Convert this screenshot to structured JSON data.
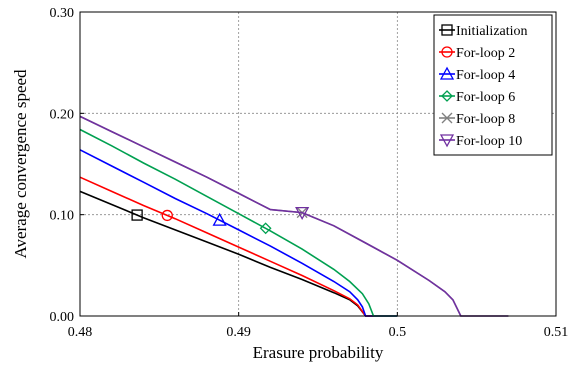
{
  "chart_data": {
    "type": "line",
    "xlabel": "Erasure probability",
    "ylabel": "Average convergence speed",
    "xlim": [
      0.48,
      0.51
    ],
    "ylim": [
      0.0,
      0.3
    ],
    "xticks": [
      0.48,
      0.49,
      0.5,
      0.51
    ],
    "yticks": [
      0.0,
      0.1,
      0.2,
      0.3
    ],
    "xtick_labels": [
      "0.48",
      "0.49",
      "0.5",
      "0.51"
    ],
    "ytick_labels": [
      "0.00",
      "0.10",
      "0.20",
      "0.30"
    ],
    "grid": true,
    "grid_style": "dotted",
    "legend_position": "top-right",
    "series": [
      {
        "name": "Initialization",
        "color": "#000000",
        "marker": "square",
        "marker_x": 0.4836,
        "x": [
          0.48,
          0.482,
          0.484,
          0.486,
          0.488,
          0.49,
          0.492,
          0.494,
          0.496,
          0.497,
          0.4975,
          0.498,
          0.5
        ],
        "y": [
          0.123,
          0.11,
          0.097,
          0.085,
          0.073,
          0.061,
          0.048,
          0.036,
          0.023,
          0.016,
          0.01,
          0.0,
          0.0
        ]
      },
      {
        "name": "For-loop 2",
        "color": "#ff0000",
        "marker": "circle",
        "marker_x": 0.4855,
        "x": [
          0.48,
          0.482,
          0.484,
          0.486,
          0.488,
          0.49,
          0.492,
          0.494,
          0.496,
          0.497,
          0.4975,
          0.498,
          0.5
        ],
        "y": [
          0.137,
          0.123,
          0.109,
          0.096,
          0.082,
          0.068,
          0.054,
          0.04,
          0.025,
          0.017,
          0.011,
          0.0,
          0.0
        ]
      },
      {
        "name": "For-loop 4",
        "color": "#0000ff",
        "marker": "triangle-up",
        "marker_x": 0.4888,
        "x": [
          0.48,
          0.482,
          0.484,
          0.486,
          0.488,
          0.49,
          0.492,
          0.494,
          0.496,
          0.497,
          0.4975,
          0.4978,
          0.498,
          0.5
        ],
        "y": [
          0.164,
          0.148,
          0.132,
          0.116,
          0.101,
          0.085,
          0.069,
          0.052,
          0.034,
          0.024,
          0.016,
          0.009,
          0.0,
          0.0
        ]
      },
      {
        "name": "For-loop 6",
        "color": "#00a050",
        "marker": "diamond",
        "marker_x": 0.4917,
        "x": [
          0.48,
          0.482,
          0.484,
          0.486,
          0.488,
          0.49,
          0.492,
          0.494,
          0.496,
          0.497,
          0.4978,
          0.4982,
          0.4985,
          0.5
        ],
        "y": [
          0.184,
          0.168,
          0.151,
          0.135,
          0.118,
          0.101,
          0.084,
          0.066,
          0.046,
          0.034,
          0.022,
          0.012,
          0.0,
          0.0
        ]
      },
      {
        "name": "For-loop 8",
        "color": "#808080",
        "marker": "x",
        "marker_x": 0.494,
        "x": [
          0.48,
          0.482,
          0.484,
          0.486,
          0.488,
          0.49,
          0.492,
          0.494,
          0.496,
          0.498,
          0.5,
          0.502,
          0.503,
          0.5035,
          0.504,
          0.507
        ],
        "y": [
          0.197,
          0.182,
          0.167,
          0.152,
          0.137,
          0.121,
          0.105,
          0.102,
          0.089,
          0.072,
          0.055,
          0.035,
          0.024,
          0.016,
          0.0,
          0.0
        ]
      },
      {
        "name": "For-loop 10",
        "color": "#7030a0",
        "marker": "triangle-down",
        "marker_x": 0.494,
        "x": [
          0.48,
          0.482,
          0.484,
          0.486,
          0.488,
          0.49,
          0.492,
          0.494,
          0.496,
          0.498,
          0.5,
          0.502,
          0.503,
          0.5035,
          0.504,
          0.507
        ],
        "y": [
          0.197,
          0.182,
          0.167,
          0.152,
          0.137,
          0.121,
          0.105,
          0.102,
          0.089,
          0.072,
          0.055,
          0.035,
          0.024,
          0.016,
          0.0,
          0.0
        ]
      }
    ]
  }
}
